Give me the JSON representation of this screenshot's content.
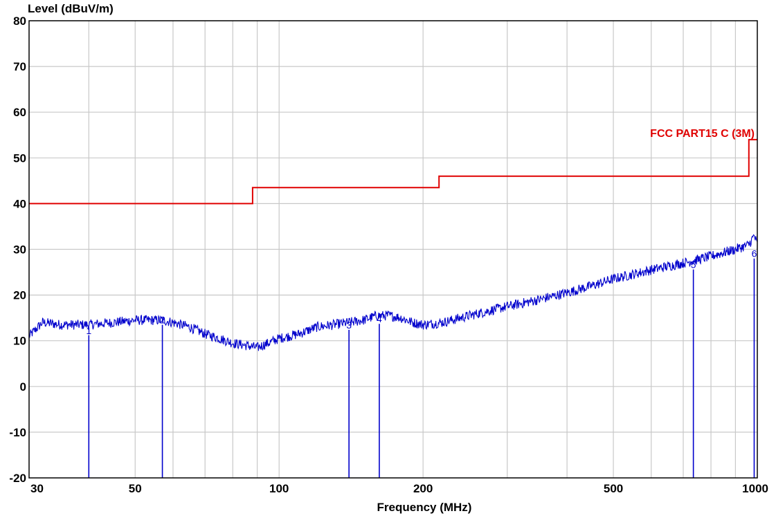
{
  "chart_data": {
    "type": "line",
    "title": "",
    "xlabel": "Frequency (MHz)",
    "ylabel": "Level (dBuV/m)",
    "xscale": "log",
    "xlim": [
      30,
      1000
    ],
    "ylim": [
      -20,
      80
    ],
    "grid": true,
    "x_ticks": [
      30,
      50,
      100,
      200,
      500,
      1000
    ],
    "x_tick_labels": [
      "30",
      "50",
      "100",
      "200",
      "500",
      "1000"
    ],
    "y_ticks": [
      -20,
      -10,
      0,
      10,
      20,
      30,
      40,
      50,
      60,
      70,
      80
    ],
    "y_tick_labels": [
      "-20",
      "-10",
      "0",
      "10",
      "20",
      "30",
      "40",
      "50",
      "60",
      "70",
      "80"
    ],
    "series": [
      {
        "name": "FCC PART15 C (3M)",
        "color": "#e00000",
        "style": "step",
        "x": [
          30,
          88,
          88,
          216,
          216,
          960,
          960,
          1000
        ],
        "y": [
          40,
          40,
          43.5,
          43.5,
          46,
          46,
          54,
          54
        ]
      },
      {
        "color": "#0000cc",
        "style": "noisy-line",
        "x": [
          30,
          32,
          35,
          40,
          45,
          50,
          55,
          57,
          60,
          65,
          70,
          75,
          80,
          85,
          90,
          95,
          100,
          110,
          120,
          130,
          140,
          150,
          160,
          170,
          180,
          190,
          200,
          220,
          250,
          300,
          350,
          400,
          450,
          500,
          600,
          700,
          735,
          800,
          900,
          960,
          985,
          1000
        ],
        "y": [
          11,
          14,
          13.5,
          13.5,
          14,
          14.5,
          14.5,
          14.5,
          14,
          13,
          11.5,
          10.5,
          9.5,
          9,
          8.5,
          9.5,
          10.5,
          11.5,
          13,
          13.5,
          14,
          14.5,
          15.5,
          15.5,
          15,
          14,
          13.5,
          14,
          15.5,
          17.5,
          19,
          20.5,
          22,
          23.5,
          25.5,
          27,
          27.5,
          28.5,
          30,
          31,
          33,
          31
        ]
      }
    ],
    "markers": [
      {
        "label": "1",
        "x": 40,
        "y": 11.2
      },
      {
        "label": "2",
        "x": 57,
        "y": 13.5
      },
      {
        "label": "3",
        "x": 140,
        "y": 12.4
      },
      {
        "label": "4",
        "x": 162,
        "y": 13.7
      },
      {
        "label": "5",
        "x": 735,
        "y": 25.6
      },
      {
        "label": "6",
        "x": 985,
        "y": 28.0
      }
    ],
    "annotations": [
      {
        "text": "FCC PART15 C (3M)",
        "color": "#e00000"
      }
    ]
  }
}
